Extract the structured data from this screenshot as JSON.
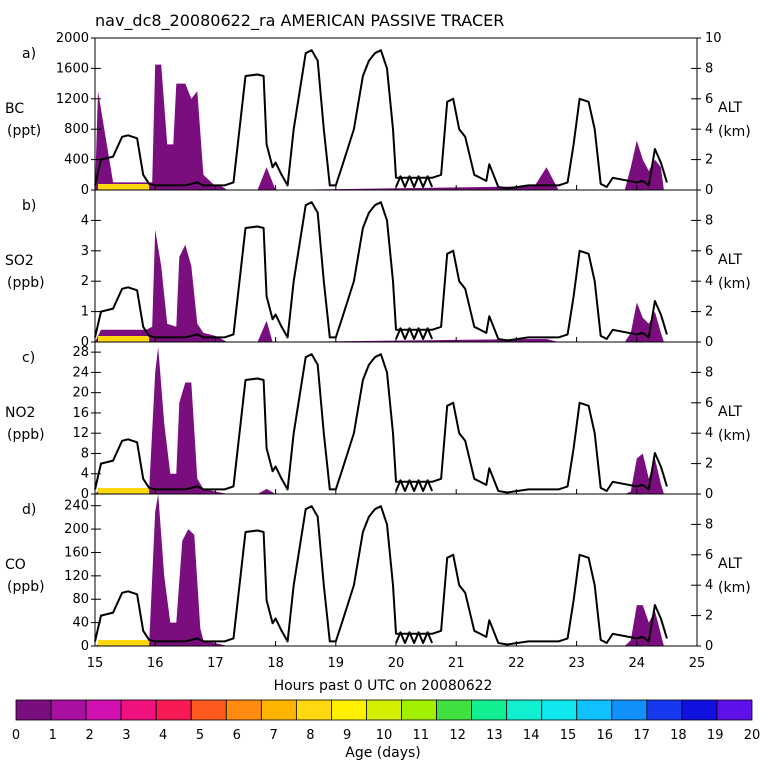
{
  "title": "nav_dc8_20080622_ra AMERICAN PASSIVE TRACER",
  "x_axis": {
    "label": "Hours past 0 UTC on 20080622",
    "range": [
      15,
      25
    ],
    "ticks": [
      "15",
      "16",
      "17",
      "18",
      "19",
      "20",
      "21",
      "22",
      "23",
      "24",
      "25"
    ]
  },
  "right_axis": {
    "label": "ALT",
    "unit": "(km)",
    "range": [
      0,
      10
    ],
    "ticks": [
      "0",
      "2",
      "4",
      "6",
      "8",
      "10"
    ]
  },
  "colorbar": {
    "label": "Age (days)",
    "ticks": [
      "0",
      "1",
      "2",
      "3",
      "4",
      "5",
      "6",
      "7",
      "8",
      "9",
      "10",
      "11",
      "12",
      "13",
      "14",
      "15",
      "16",
      "17",
      "18",
      "19",
      "20"
    ],
    "colors": [
      "#7a0e7f",
      "#a8109f",
      "#d010b0",
      "#f0107e",
      "#f81a55",
      "#ff5a1e",
      "#ff8c10",
      "#ffb400",
      "#ffd810",
      "#fff000",
      "#d4f000",
      "#a0f000",
      "#40e040",
      "#10f090",
      "#10f0d0",
      "#10e8f0",
      "#10c0ff",
      "#1090f8",
      "#1838f0",
      "#1010e0",
      "#6010e8"
    ]
  },
  "flight_altitude_km": {
    "hours": [
      15.0,
      15.1,
      15.3,
      15.45,
      15.55,
      15.7,
      15.8,
      15.9,
      16.0,
      16.1,
      16.15,
      16.3,
      16.5,
      16.6,
      16.7,
      16.8,
      17.0,
      17.15,
      17.3,
      17.5,
      17.7,
      17.8,
      17.85,
      17.95,
      18.0,
      18.1,
      18.2,
      18.3,
      18.5,
      18.6,
      18.7,
      18.8,
      18.9,
      19.0,
      19.1,
      19.3,
      19.45,
      19.55,
      19.65,
      19.75,
      19.85,
      19.95,
      20.0,
      20.6,
      20.75,
      20.85,
      20.95,
      21.05,
      21.15,
      21.3,
      21.5,
      21.55,
      21.6,
      21.7,
      21.85,
      22.2,
      22.5,
      22.7,
      22.85,
      22.95,
      23.05,
      23.2,
      23.3,
      23.4,
      23.5,
      23.6,
      24.0,
      24.1,
      24.2,
      24.3,
      24.4,
      24.5
    ],
    "values": [
      0.3,
      2.0,
      2.2,
      3.5,
      3.6,
      3.4,
      1.0,
      0.4,
      0.3,
      0.3,
      0.3,
      0.3,
      0.3,
      0.4,
      0.5,
      0.3,
      0.3,
      0.3,
      0.5,
      7.5,
      7.6,
      7.5,
      3.0,
      1.5,
      1.8,
      1.0,
      0.3,
      4.0,
      9.0,
      9.2,
      8.5,
      4.0,
      0.3,
      0.3,
      1.5,
      4.0,
      7.5,
      8.5,
      9.0,
      9.2,
      8.0,
      4.0,
      0.8,
      0.8,
      1.0,
      5.8,
      6.0,
      4.0,
      3.5,
      1.0,
      0.6,
      1.7,
      1.2,
      0.2,
      0.1,
      0.3,
      0.3,
      0.3,
      0.5,
      3.0,
      6.0,
      5.8,
      4.0,
      0.4,
      0.2,
      0.8,
      0.5,
      0.6,
      0.3,
      2.7,
      1.8,
      0.5
    ]
  },
  "panels": [
    {
      "tag": "a)",
      "name": "BC",
      "unit": "(ppt)",
      "chart_data": {
        "type": "area",
        "title": "BC",
        "ylabel": "BC (ppt)",
        "ylim": [
          0,
          2000
        ],
        "yticks": [
          "0",
          "400",
          "800",
          "1200",
          "1600",
          "2000"
        ],
        "x": [
          15.0,
          15.05,
          15.3,
          15.5,
          15.75,
          15.95,
          16.0,
          16.1,
          16.2,
          16.3,
          16.35,
          16.5,
          16.6,
          16.7,
          16.8,
          17.0,
          17.1,
          17.2,
          17.7,
          17.85,
          18.0,
          22.3,
          22.5,
          22.7,
          23.0,
          23.8,
          23.9,
          24.0,
          24.1,
          24.2,
          24.3,
          24.4,
          24.45
        ],
        "values": [
          0,
          1300,
          100,
          100,
          100,
          100,
          1650,
          1650,
          600,
          600,
          1400,
          1400,
          1200,
          1300,
          200,
          50,
          50,
          0,
          0,
          300,
          0,
          50,
          300,
          0,
          0,
          0,
          300,
          650,
          400,
          250,
          400,
          300,
          0
        ]
      }
    },
    {
      "tag": "b)",
      "name": "SO2",
      "unit": "(ppb)",
      "chart_data": {
        "type": "area",
        "title": "SO2",
        "ylabel": "SO2 (ppb)",
        "ylim": [
          0,
          5
        ],
        "yticks": [
          "0",
          "1",
          "2",
          "3",
          "4"
        ],
        "x": [
          15.0,
          15.1,
          15.85,
          15.95,
          16.0,
          16.1,
          16.2,
          16.35,
          16.4,
          16.5,
          16.6,
          16.7,
          16.8,
          17.0,
          17.2,
          17.7,
          17.85,
          17.95,
          18.0,
          22.3,
          22.5,
          22.7,
          23.0,
          23.8,
          23.9,
          24.0,
          24.1,
          24.2,
          24.3,
          24.4,
          24.45
        ],
        "values": [
          0,
          0.4,
          0.4,
          0.5,
          3.7,
          2.5,
          0.6,
          0.5,
          2.8,
          3.2,
          2.5,
          0.6,
          0.3,
          0.2,
          0,
          0,
          0.7,
          0,
          0,
          0.1,
          0.1,
          0,
          0,
          0,
          0.3,
          1.3,
          0.8,
          0.6,
          1.0,
          0.3,
          0
        ]
      }
    },
    {
      "tag": "c)",
      "name": "NO2",
      "unit": "(ppb)",
      "chart_data": {
        "type": "area",
        "title": "NO2",
        "ylabel": "NO2 (ppb)",
        "ylim": [
          0,
          30
        ],
        "yticks": [
          "0",
          "4",
          "8",
          "12",
          "16",
          "20",
          "24",
          "28"
        ],
        "x": [
          15.0,
          15.1,
          15.9,
          16.0,
          16.05,
          16.15,
          16.25,
          16.35,
          16.4,
          16.5,
          16.6,
          16.7,
          16.8,
          17.0,
          17.2,
          17.7,
          17.85,
          18.0,
          23.8,
          23.9,
          24.0,
          24.1,
          24.2,
          24.3,
          24.4,
          24.45
        ],
        "values": [
          0,
          1,
          1,
          24,
          29,
          14,
          4,
          4,
          18,
          22,
          22,
          3,
          1,
          0.5,
          0,
          0,
          1,
          0,
          0,
          0.5,
          7,
          8,
          3,
          7,
          2,
          0
        ]
      }
    },
    {
      "tag": "d)",
      "name": "CO",
      "unit": "(ppb)",
      "chart_data": {
        "type": "area",
        "title": "CO",
        "ylabel": "CO (ppb)",
        "ylim": [
          0,
          260
        ],
        "yticks": [
          "0",
          "40",
          "80",
          "120",
          "160",
          "200",
          "240"
        ],
        "x": [
          15.0,
          15.1,
          15.9,
          16.0,
          16.05,
          16.15,
          16.25,
          16.35,
          16.45,
          16.55,
          16.65,
          16.75,
          16.8,
          17.0,
          17.2,
          23.8,
          23.9,
          24.0,
          24.1,
          24.2,
          24.3,
          24.4,
          24.45
        ],
        "values": [
          0,
          5,
          5,
          230,
          260,
          120,
          40,
          40,
          180,
          200,
          190,
          30,
          10,
          5,
          0,
          0,
          10,
          70,
          70,
          40,
          60,
          20,
          0
        ]
      }
    }
  ]
}
